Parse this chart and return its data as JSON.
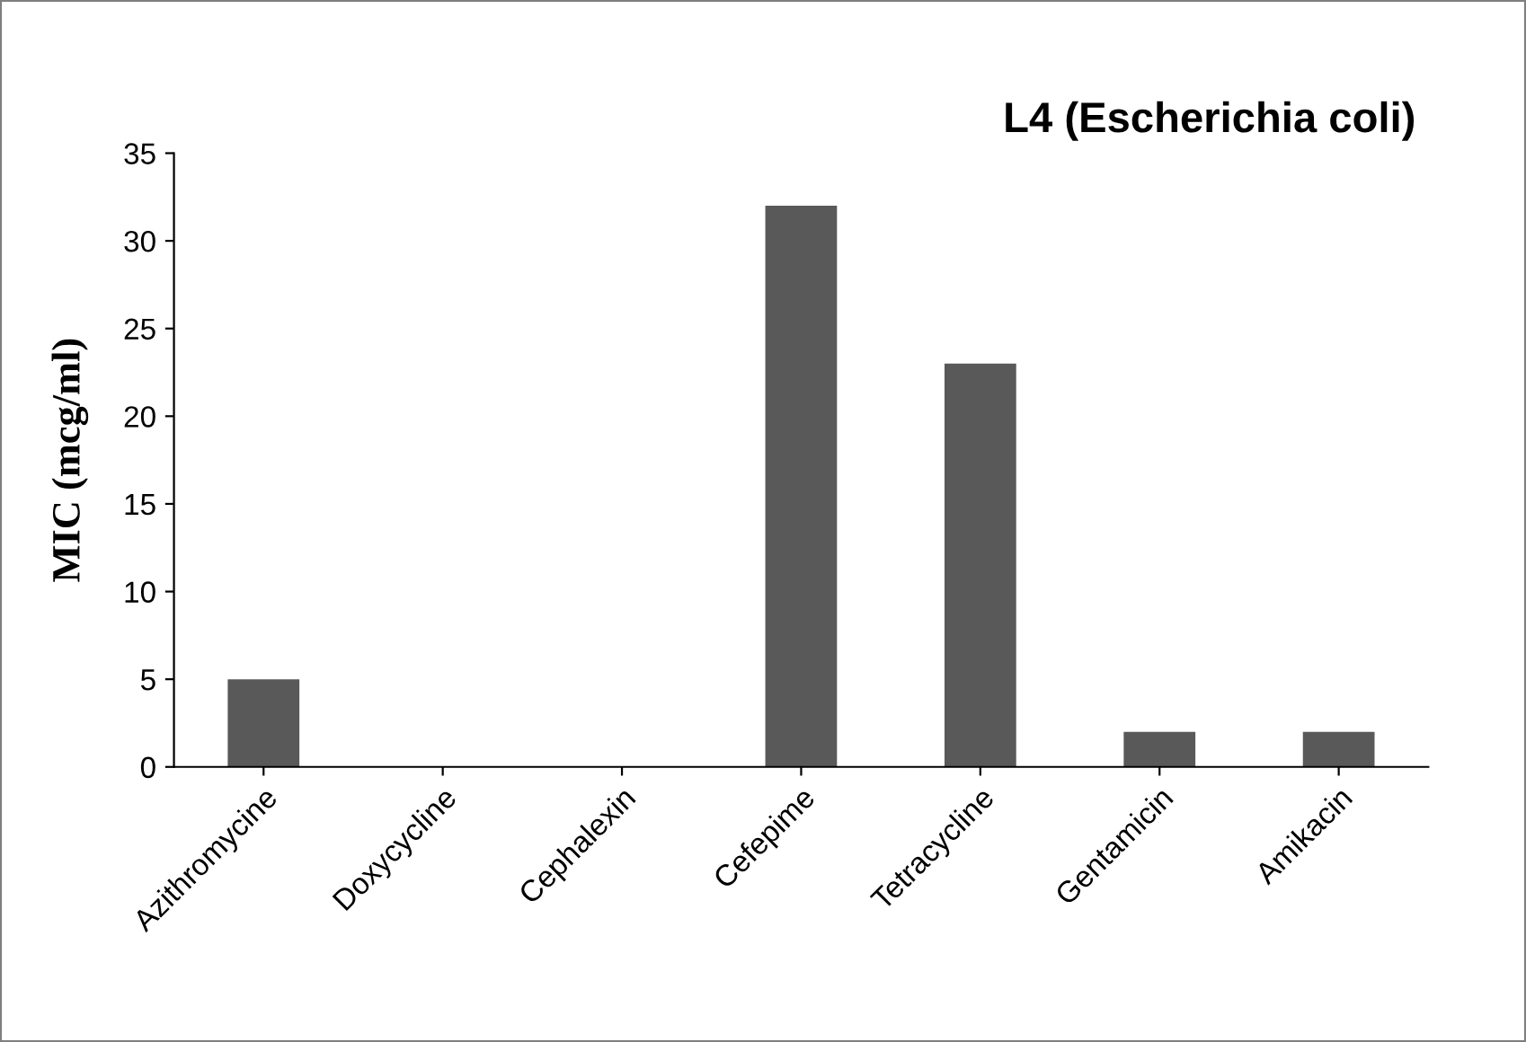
{
  "chart_data": {
    "type": "bar",
    "title": "L4 (Escherichia coli)",
    "ylabel": "MIC (mcg/ml)",
    "categories": [
      "Azithromycine",
      "Doxycycline",
      "Cephalexin",
      "Cefepime",
      "Tetracycline",
      "Gentamicin",
      "Amikacin"
    ],
    "values": [
      5,
      0,
      0,
      32,
      23,
      2,
      2
    ],
    "color": "#595959",
    "ylim": [
      0,
      35
    ],
    "yticks": [
      0,
      5,
      10,
      15,
      20,
      25,
      30,
      35
    ],
    "grid": false,
    "legend": false
  }
}
